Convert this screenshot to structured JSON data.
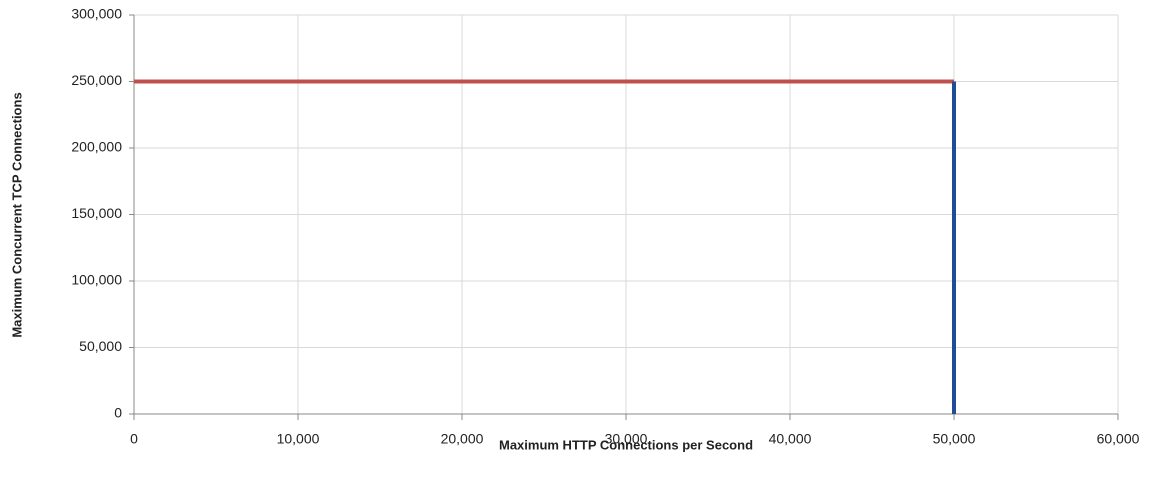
{
  "chart_data": {
    "type": "line",
    "xlabel": "Maximum HTTP Connections per Second",
    "ylabel": "Maximum Concurrent TCP Connections",
    "xlim": [
      0,
      60000
    ],
    "xticks": [
      0,
      {
        "value": 10000,
        "label": "10,000"
      },
      {
        "value": 20000,
        "label": "20,000"
      },
      {
        "value": 30000,
        "label": "30,000"
      },
      {
        "value": 40000,
        "label": "40,000"
      },
      {
        "value": 50000,
        "label": "50,000"
      },
      {
        "value": 60000,
        "label": "60,000"
      }
    ],
    "ylim": [
      0,
      300000
    ],
    "yticks": [
      0,
      {
        "value": 50000,
        "label": "50,000"
      },
      {
        "value": 100000,
        "label": "100,000"
      },
      {
        "value": 150000,
        "label": "150,000"
      },
      {
        "value": 200000,
        "label": "200,000"
      },
      {
        "value": 250000,
        "label": "250,000"
      },
      {
        "value": 300000,
        "label": "300,000"
      }
    ],
    "grid": true,
    "series": [
      {
        "color": "#c0504d",
        "x": [
          0,
          50000
        ],
        "values": [
          250000,
          250000
        ]
      },
      {
        "color": "#1f4e96",
        "x": [
          50000,
          50000
        ],
        "values": [
          0,
          250000
        ]
      }
    ]
  }
}
